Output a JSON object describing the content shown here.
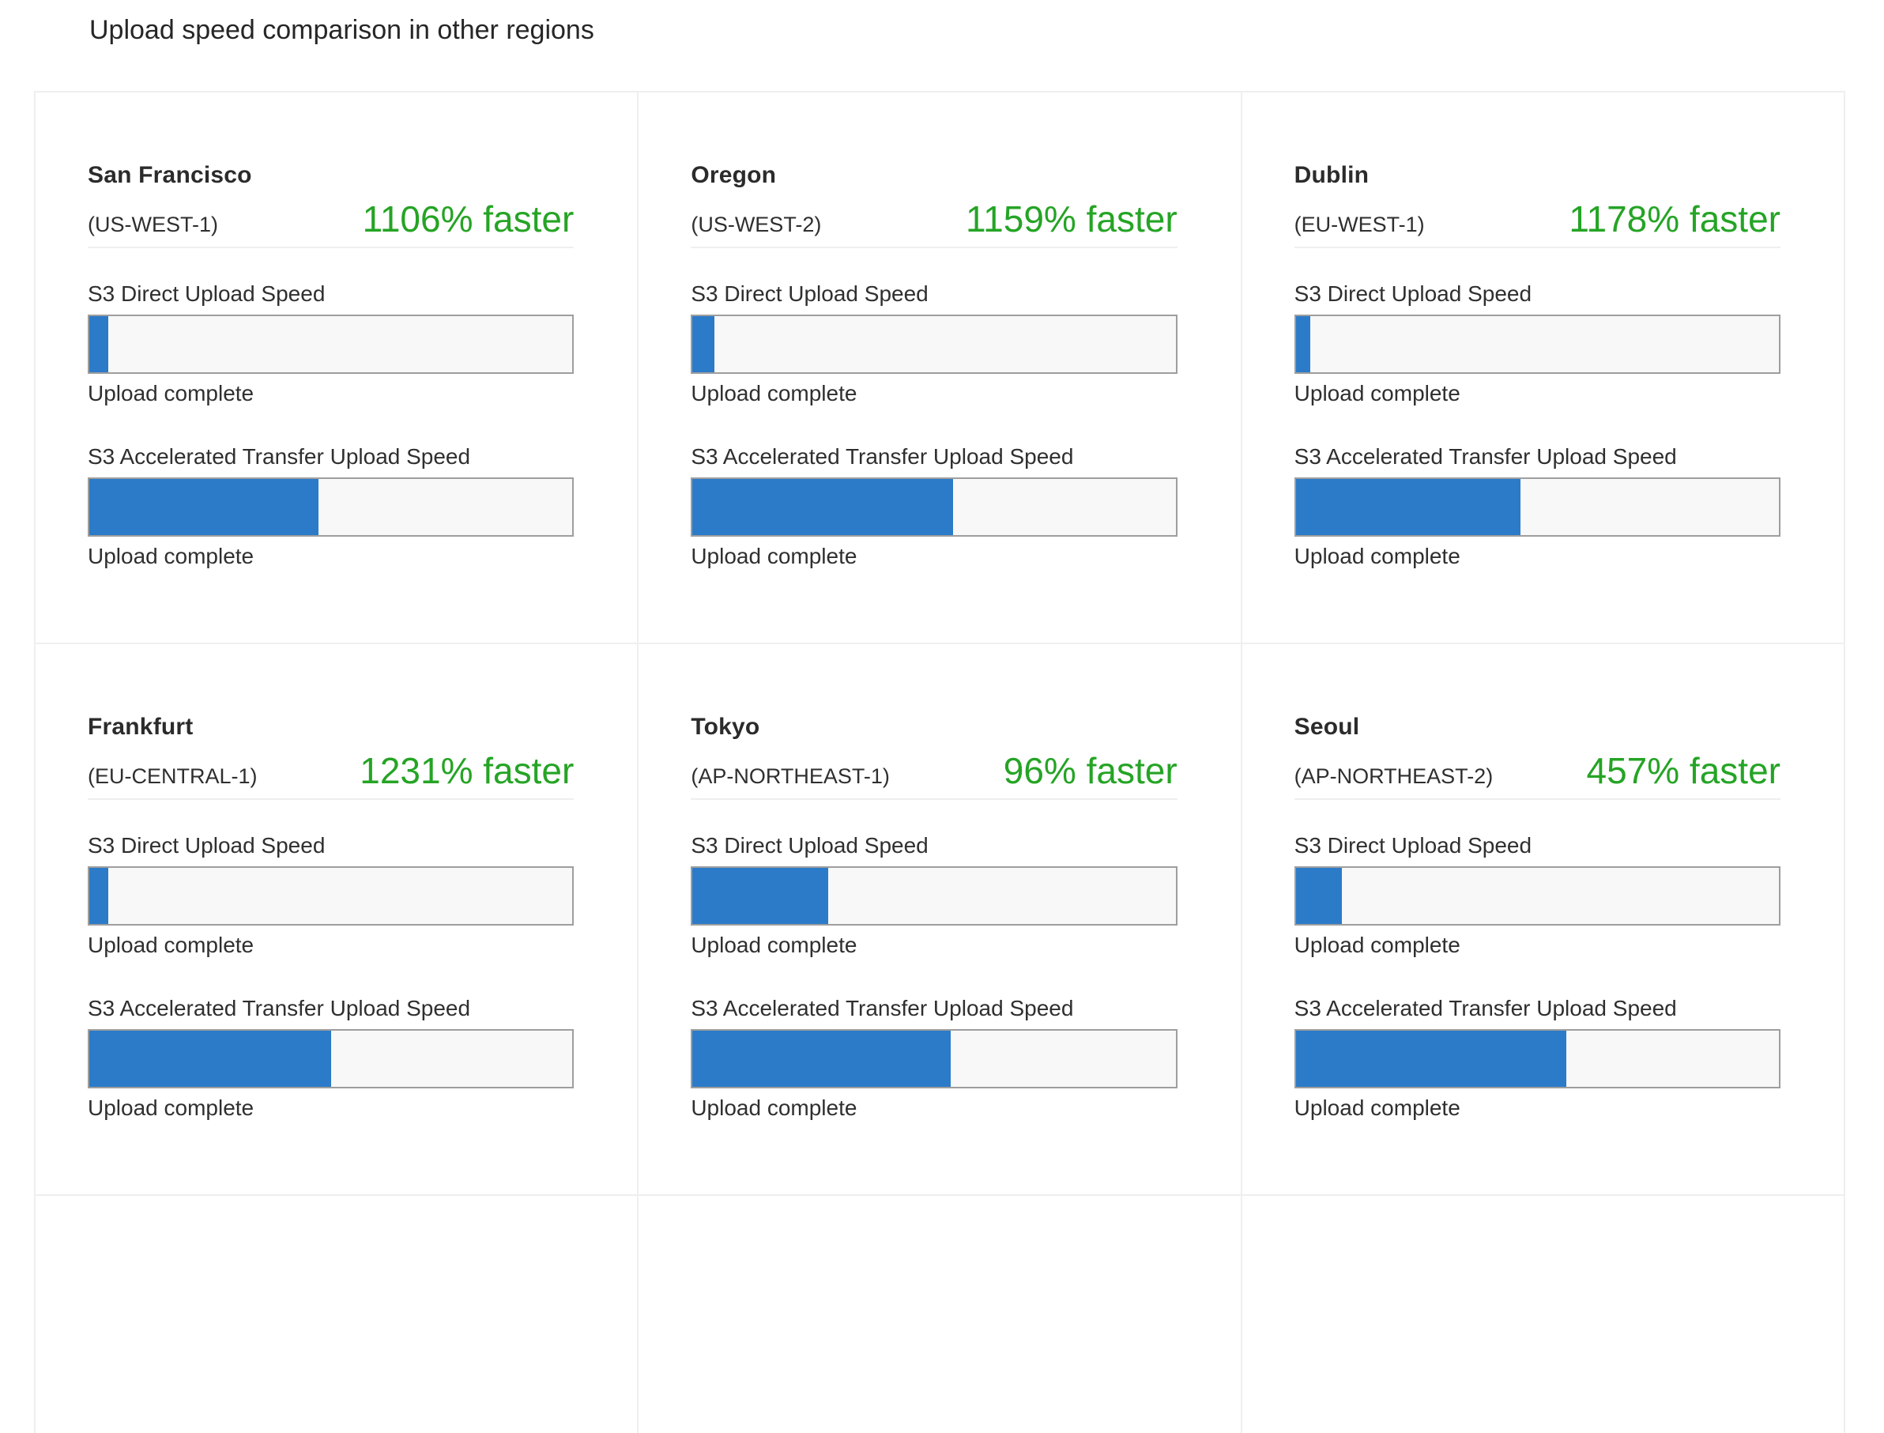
{
  "page": {
    "title": "Upload speed comparison in other regions"
  },
  "labels": {
    "direct": "S3 Direct Upload Speed",
    "accelerated": "S3 Accelerated Transfer Upload Speed",
    "complete": "Upload complete"
  },
  "colors": {
    "green": "#25a425",
    "blue": "#2b7bc9",
    "bar_background": "#f8f8f8",
    "bar_border": "#9e9e9e",
    "grid_border": "#efefef"
  },
  "regions": [
    {
      "name": "San Francisco",
      "code": "(US-WEST-1)",
      "faster": "1106% faster",
      "direct_width": "4%",
      "accelerated_width": "47.5%"
    },
    {
      "name": "Oregon",
      "code": "(US-WEST-2)",
      "faster": "1159% faster",
      "direct_width": "4.5%",
      "accelerated_width": "54%"
    },
    {
      "name": "Dublin",
      "code": "(EU-WEST-1)",
      "faster": "1178% faster",
      "direct_width": "3%",
      "accelerated_width": "46.5%"
    },
    {
      "name": "Frankfurt",
      "code": "(EU-CENTRAL-1)",
      "faster": "1231% faster",
      "direct_width": "4%",
      "accelerated_width": "50%"
    },
    {
      "name": "Tokyo",
      "code": "(AP-NORTHEAST-1)",
      "faster": "96% faster",
      "direct_width": "28%",
      "accelerated_width": "53.5%"
    },
    {
      "name": "Seoul",
      "code": "(AP-NORTHEAST-2)",
      "faster": "457% faster",
      "direct_width": "9.5%",
      "accelerated_width": "56%"
    }
  ]
}
